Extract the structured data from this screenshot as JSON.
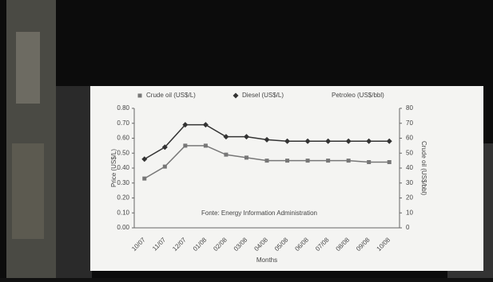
{
  "chart_data": {
    "type": "line",
    "categories": [
      "10/07",
      "11/07",
      "12/07",
      "01/08",
      "02/08",
      "03/08",
      "04/08",
      "05/08",
      "06/08",
      "07/08",
      "08/08",
      "09/08",
      "10/08"
    ],
    "series": [
      {
        "name": "Crude oil (US$/L)",
        "color": "#777777",
        "marker": "square",
        "values": [
          0.33,
          0.41,
          0.55,
          0.55,
          0.49,
          0.47,
          0.45,
          0.45,
          0.45,
          0.45,
          0.45,
          0.44,
          0.44
        ]
      },
      {
        "name": "Diesel (US$/L)",
        "color": "#333333",
        "marker": "diamond",
        "values": [
          0.46,
          0.54,
          0.69,
          0.69,
          0.61,
          0.61,
          0.59,
          0.58,
          0.58,
          0.58,
          0.58,
          0.58,
          0.58
        ]
      }
    ],
    "ylim": [
      0,
      0.8
    ],
    "yticks": [
      {
        "value": 0,
        "label": "0.00"
      },
      {
        "value": 0.1,
        "label": "0.10"
      },
      {
        "value": 0.2,
        "label": "0.20"
      },
      {
        "value": 0.3,
        "label": "0.30"
      },
      {
        "value": 0.4,
        "label": "0.40"
      },
      {
        "value": 0.5,
        "label": "0.50"
      },
      {
        "value": 0.6,
        "label": "0.60"
      },
      {
        "value": 0.7,
        "label": "0.70"
      },
      {
        "value": 0.8,
        "label": "0.80"
      }
    ],
    "y2lim": [
      0,
      80
    ],
    "y2ticks": [
      0,
      10,
      20,
      30,
      40,
      50,
      60,
      70,
      80
    ],
    "ylabel": "Price (US$/L)",
    "y2label": "Crude oil (US$/bbl)",
    "xlabel": "Months",
    "legend_extra": "Petroleo (US$/bbl)",
    "annotation": "Fonte: Energy Information Administration"
  }
}
